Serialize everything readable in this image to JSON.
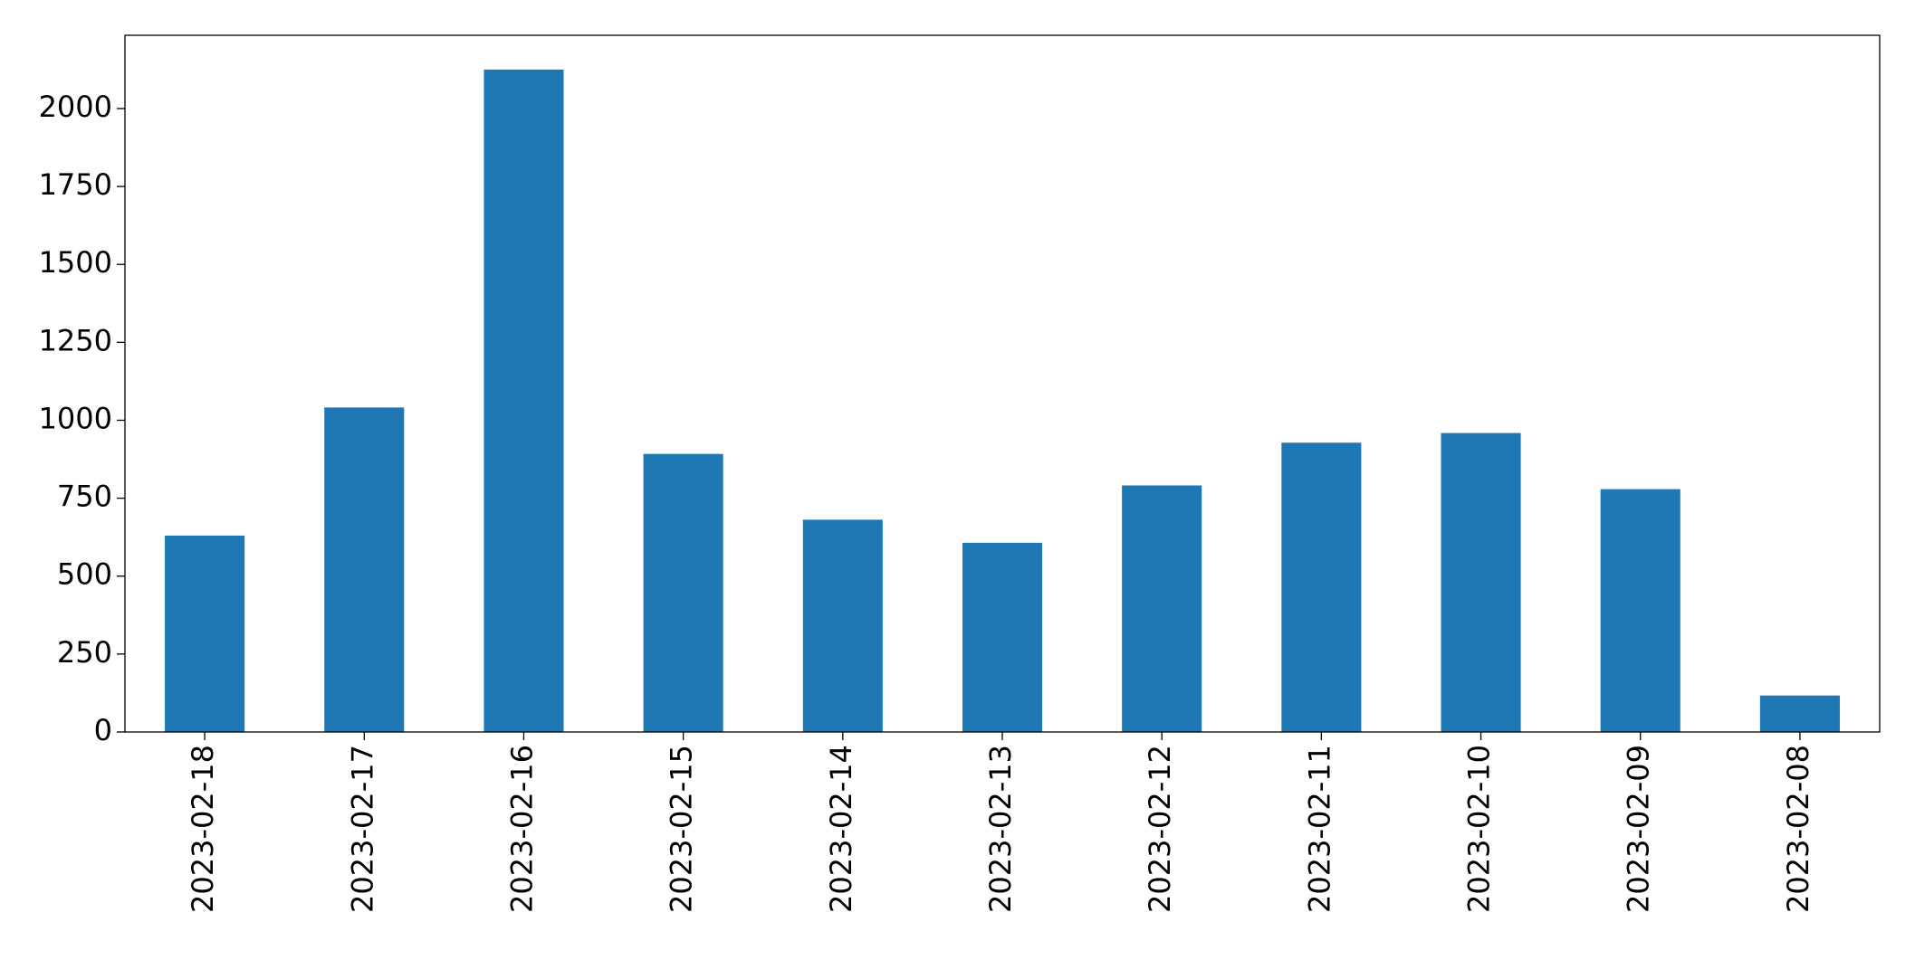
{
  "chart_data": {
    "type": "bar",
    "categories": [
      "2023-02-18",
      "2023-02-17",
      "2023-02-16",
      "2023-02-15",
      "2023-02-14",
      "2023-02-13",
      "2023-02-12",
      "2023-02-11",
      "2023-02-10",
      "2023-02-09",
      "2023-02-08"
    ],
    "values": [
      630,
      1041,
      2125,
      892,
      681,
      607,
      791,
      928,
      959,
      779,
      117
    ],
    "color": "#1f77b4",
    "ylim": [
      0,
      2235
    ],
    "yticks": [
      0,
      250,
      500,
      750,
      1000,
      1250,
      1500,
      1750,
      2000
    ],
    "grid": false
  }
}
